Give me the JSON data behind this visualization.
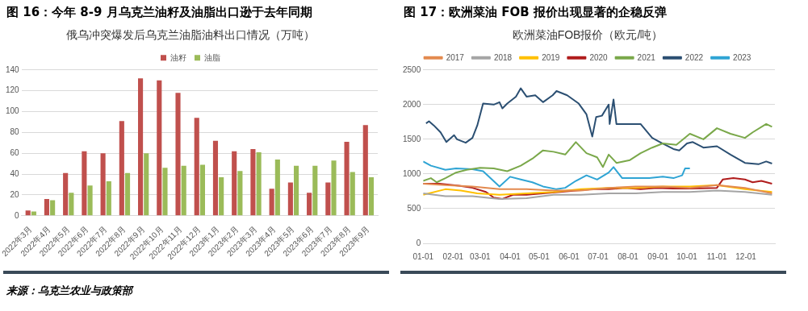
{
  "chart_data": [
    {
      "type": "bar",
      "title": "图 16：今年 8-9 月乌克兰油籽及油脂出口逊于去年同期",
      "subtitle": "俄乌冲突爆发后乌克兰油脂油料出口情况（万吨）",
      "categories": [
        "2022年3月",
        "2022年4月",
        "2022年5月",
        "2022年6月",
        "2022年7月",
        "2022年8月",
        "2022年9月",
        "2022年10月",
        "2022年11月",
        "2022年12月",
        "2023年1月",
        "2023年2月",
        "2023年3月",
        "2023年4月",
        "2023年5月",
        "2023年6月",
        "2023年7月",
        "2023年8月",
        "2023年9月"
      ],
      "series": [
        {
          "name": "油籽",
          "color": "#c0504d",
          "values": [
            5,
            16,
            41,
            62,
            60,
            91,
            132,
            130,
            118,
            94,
            72,
            62,
            64,
            26,
            32,
            22,
            32,
            71,
            87
          ]
        },
        {
          "name": "油脂",
          "color": "#9bbb59",
          "values": [
            4,
            15,
            22,
            29,
            33,
            41,
            60,
            46,
            48,
            49,
            37,
            43,
            61,
            54,
            48,
            48,
            53,
            42,
            37
          ]
        }
      ],
      "ylim": [
        0,
        140
      ],
      "yticks": [
        0,
        20,
        40,
        60,
        80,
        100,
        120,
        140
      ],
      "grid": "y",
      "legend": "top",
      "annotations": [
        "来源：乌克兰农业与政策部"
      ]
    },
    {
      "type": "line",
      "title": "图 17：欧洲菜油 FOB 报价出现显著的企稳反弹",
      "subtitle": "欧洲菜油FOB报价（欧元/吨）",
      "series": [
        {
          "name": "2017",
          "color": "#e38a4f",
          "x": [
            "--01-01",
            "--01-24",
            "--02-21",
            "--03-21",
            "--04-18",
            "--05-16",
            "--06-13",
            "--07-12",
            "--08-09",
            "--09-06",
            "--10-04",
            "--11-01",
            "--11-30",
            "--12-28"
          ],
          "values": [
            860,
            840,
            820,
            780,
            780,
            760,
            760,
            800,
            820,
            820,
            800,
            840,
            800,
            720
          ]
        },
        {
          "name": "2018",
          "color": "#a5a5a5",
          "x": [
            "--01-01",
            "--01-24",
            "--02-21",
            "--03-21",
            "--04-18",
            "--05-16",
            "--06-13",
            "--07-12",
            "--08-09",
            "--09-06",
            "--10-04",
            "--11-01",
            "--11-30",
            "--12-28"
          ],
          "values": [
            720,
            680,
            680,
            640,
            650,
            700,
            700,
            720,
            720,
            740,
            740,
            760,
            740,
            700
          ]
        },
        {
          "name": "2019",
          "color": "#ffc000",
          "x": [
            "--01-01",
            "--01-24",
            "--02-09",
            "--02-26",
            "--03-21",
            "--04-18",
            "--05-16",
            "--06-13",
            "--07-12",
            "--08-09",
            "--09-06",
            "--10-04",
            "--11-01",
            "--11-30",
            "--12-28"
          ],
          "values": [
            700,
            780,
            760,
            720,
            700,
            720,
            740,
            780,
            800,
            800,
            820,
            820,
            840,
            780,
            740
          ]
        },
        {
          "name": "2020",
          "color": "#b01c1c",
          "x": [
            "--01-01",
            "--01-18",
            "--02-07",
            "--02-21",
            "--03-07",
            "--03-15",
            "--03-24",
            "--04-04",
            "--04-18",
            "--05-05",
            "--05-22",
            "--06-08",
            "--06-25",
            "--07-12",
            "--07-29",
            "--08-14",
            "--08-31",
            "--09-17",
            "--10-04",
            "--11-01",
            "--11-07",
            "--11-18",
            "--11-30",
            "--12-08",
            "--12-17",
            "--12-28"
          ],
          "values": [
            860,
            860,
            830,
            800,
            740,
            660,
            640,
            700,
            700,
            720,
            740,
            760,
            780,
            780,
            800,
            780,
            800,
            790,
            790,
            800,
            920,
            940,
            920,
            880,
            900,
            860
          ]
        },
        {
          "name": "2021",
          "color": "#7aa84a",
          "x": [
            "--01-01",
            "--01-09",
            "--01-15",
            "--01-24",
            "--02-04",
            "--02-15",
            "--03-01",
            "--03-15",
            "--03-29",
            "--04-12",
            "--04-24",
            "--05-05",
            "--05-16",
            "--05-28",
            "--06-08",
            "--06-19",
            "--06-30",
            "--07-06",
            "--07-12",
            "--07-20",
            "--08-03",
            "--08-14",
            "--08-26",
            "--09-06",
            "--09-20",
            "--10-04",
            "--10-18",
            "--11-01",
            "--11-15",
            "--11-30",
            "--12-08",
            "--12-22",
            "--12-28"
          ],
          "values": [
            900,
            940,
            880,
            940,
            1020,
            1060,
            1090,
            1080,
            1040,
            1120,
            1220,
            1340,
            1320,
            1280,
            1460,
            1300,
            1240,
            1100,
            1280,
            1160,
            1200,
            1300,
            1380,
            1440,
            1420,
            1580,
            1500,
            1660,
            1580,
            1520,
            1600,
            1720,
            1680
          ]
        },
        {
          "name": "2022",
          "color": "#2b4f72",
          "x": [
            "--01-04",
            "--01-07",
            "--01-12",
            "--01-19",
            "--01-25",
            "--02-02",
            "--02-05",
            "--02-14",
            "--02-21",
            "--02-26",
            "--03-04",
            "--03-15",
            "--03-21",
            "--03-24",
            "--03-29",
            "--04-07",
            "--04-12",
            "--04-18",
            "--04-27",
            "--05-05",
            "--05-15",
            "--05-19",
            "--05-30",
            "--06-11",
            "--06-19",
            "--06-25",
            "--06-29",
            "--07-05",
            "--07-12",
            "--07-13",
            "--07-17",
            "--07-20",
            "--07-31",
            "--08-14",
            "--08-26",
            "--09-03",
            "--09-17",
            "--09-23",
            "--10-01",
            "--10-07",
            "--10-18",
            "--11-01",
            "--11-15",
            "--11-30",
            "--12-14",
            "--12-22",
            "--12-28"
          ],
          "values": [
            1730,
            1760,
            1700,
            1600,
            1460,
            1560,
            1500,
            1450,
            1520,
            1700,
            2015,
            2000,
            2035,
            1945,
            2015,
            2115,
            2235,
            2115,
            2135,
            2035,
            2135,
            2195,
            2135,
            2015,
            1860,
            1540,
            1820,
            1840,
            2000,
            1720,
            2075,
            1720,
            1720,
            1720,
            1520,
            1460,
            1360,
            1340,
            1440,
            1460,
            1380,
            1400,
            1280,
            1160,
            1140,
            1180,
            1150
          ]
        },
        {
          "name": "2023",
          "color": "#2fa4d4",
          "x": [
            "--01-01",
            "--01-09",
            "--01-24",
            "--02-04",
            "--02-21",
            "--03-04",
            "--03-21",
            "--04-01",
            "--04-12",
            "--04-24",
            "--05-05",
            "--05-19",
            "--05-28",
            "--06-08",
            "--06-19",
            "--06-30",
            "--07-12",
            "--07-17",
            "--07-26",
            "--08-09",
            "--08-23",
            "--09-06",
            "--09-17",
            "--09-26",
            "--09-29",
            "--10-04"
          ],
          "values": [
            1180,
            1120,
            1060,
            1080,
            1070,
            1040,
            820,
            960,
            920,
            880,
            820,
            780,
            800,
            900,
            980,
            920,
            1020,
            1100,
            940,
            940,
            940,
            960,
            940,
            980,
            1080,
            1080
          ]
        }
      ],
      "xlim": [
        "--01-01",
        "--12-31"
      ],
      "xticks": [
        {
          "value": "--01-01",
          "label": "01-01"
        },
        {
          "value": "--02-01",
          "label": "02-01"
        },
        {
          "value": "--03-01",
          "label": "03-01"
        },
        {
          "value": "--04-01",
          "label": "04-01"
        },
        {
          "value": "--05-01",
          "label": "05-01"
        },
        {
          "value": "--06-01",
          "label": "06-01"
        },
        {
          "value": "--07-01",
          "label": "07-01"
        },
        {
          "value": "--08-01",
          "label": "08-01"
        },
        {
          "value": "--09-01",
          "label": "09-01"
        },
        {
          "value": "--10-01",
          "label": "10-01"
        },
        {
          "value": "--11-01",
          "label": "11-01"
        },
        {
          "value": "--12-01",
          "label": "12-01"
        }
      ],
      "ylim": [
        0,
        2500
      ],
      "yticks": [
        0,
        500,
        1000,
        1500,
        2000,
        2500
      ],
      "grid": "y",
      "legend": "top",
      "marker": "none",
      "line_style": "solid"
    }
  ]
}
